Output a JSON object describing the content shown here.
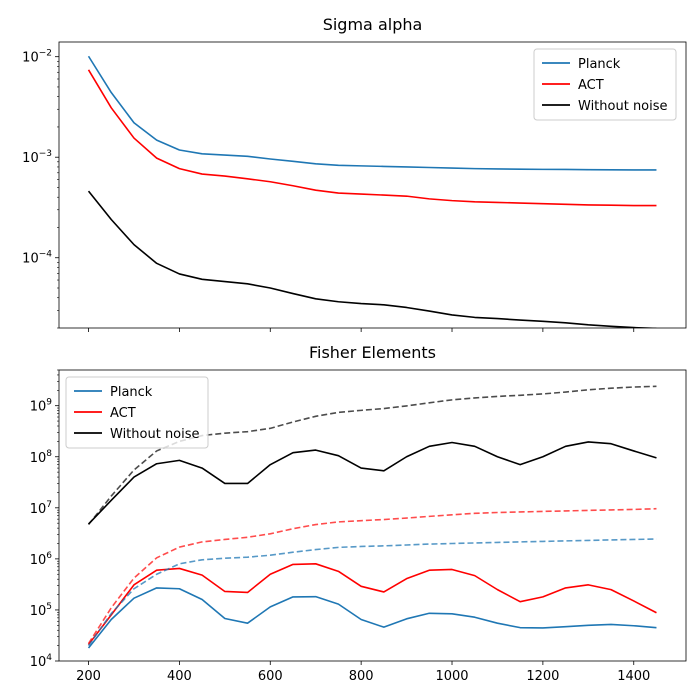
{
  "chart_data": [
    {
      "type": "line",
      "title": "Sigma alpha",
      "yscale": "log",
      "ylim": [
        2e-05,
        0.014
      ],
      "xlim": [
        135,
        1515
      ],
      "xticks": [
        200,
        400,
        600,
        800,
        1000,
        1200,
        1400
      ],
      "x_ticklabels_visible": false,
      "yticks": [
        {
          "value": 0.0001,
          "mant": "10",
          "exp": "−4"
        },
        {
          "value": 0.001,
          "mant": "10",
          "exp": "−3"
        },
        {
          "value": 0.01,
          "mant": "10",
          "exp": "−2"
        }
      ],
      "legend": {
        "location": "upper right"
      },
      "x": [
        200,
        250,
        300,
        350,
        400,
        450,
        500,
        550,
        600,
        650,
        700,
        750,
        800,
        850,
        900,
        950,
        1000,
        1050,
        1100,
        1150,
        1200,
        1250,
        1300,
        1350,
        1400,
        1450
      ],
      "series": [
        {
          "name": "Planck",
          "color": "#1f77b4",
          "style": "solid",
          "values": [
            0.0101,
            0.0044,
            0.0022,
            0.00148,
            0.00118,
            0.00108,
            0.00105,
            0.00102,
            0.00096,
            0.00091,
            0.00086,
            0.00083,
            0.00082,
            0.00081,
            0.0008,
            0.00079,
            0.00078,
            0.00077,
            0.000765,
            0.00076,
            0.000757,
            0.000755,
            0.000752,
            0.00075,
            0.000748,
            0.000747
          ]
        },
        {
          "name": "ACT",
          "color": "#ff0000",
          "style": "solid",
          "values": [
            0.0074,
            0.0031,
            0.00155,
            0.00098,
            0.00077,
            0.00068,
            0.00065,
            0.00061,
            0.00057,
            0.00052,
            0.00047,
            0.00044,
            0.00043,
            0.00042,
            0.00041,
            0.000385,
            0.00037,
            0.00036,
            0.000355,
            0.00035,
            0.000345,
            0.00034,
            0.000335,
            0.000333,
            0.00033,
            0.00033
          ]
        },
        {
          "name": "Without noise",
          "color": "#000000",
          "style": "solid",
          "values": [
            0.00046,
            0.00024,
            0.000135,
            8.8e-05,
            6.9e-05,
            6.1e-05,
            5.8e-05,
            5.5e-05,
            5e-05,
            4.4e-05,
            3.9e-05,
            3.65e-05,
            3.5e-05,
            3.4e-05,
            3.2e-05,
            2.95e-05,
            2.7e-05,
            2.55e-05,
            2.48e-05,
            2.4e-05,
            2.33e-05,
            2.25e-05,
            2.15e-05,
            2.08e-05,
            2.02e-05,
            1.98e-05
          ]
        }
      ]
    },
    {
      "type": "line",
      "title": "Fisher Elements",
      "yscale": "log",
      "ylim": [
        10000,
        5000000000
      ],
      "xlim": [
        135,
        1515
      ],
      "xticks": [
        200,
        400,
        600,
        800,
        1000,
        1200,
        1400
      ],
      "yticks": [
        {
          "value": 10000,
          "mant": "10",
          "exp": "4"
        },
        {
          "value": 100000,
          "mant": "10",
          "exp": "5"
        },
        {
          "value": 1000000,
          "mant": "10",
          "exp": "6"
        },
        {
          "value": 10000000,
          "mant": "10",
          "exp": "7"
        },
        {
          "value": 100000000,
          "mant": "10",
          "exp": "8"
        },
        {
          "value": 1000000000,
          "mant": "10",
          "exp": "9"
        }
      ],
      "legend": {
        "location": "upper left"
      },
      "x": [
        200,
        250,
        300,
        350,
        400,
        450,
        500,
        550,
        600,
        650,
        700,
        750,
        800,
        850,
        900,
        950,
        1000,
        1050,
        1100,
        1150,
        1200,
        1250,
        1300,
        1350,
        1400,
        1450
      ],
      "series": [
        {
          "name": "Planck",
          "color": "#1f77b4",
          "style": "solid",
          "values": [
            18000,
            65000,
            170000,
            270000,
            260000,
            160000,
            68000,
            55000,
            115000,
            180000,
            182000,
            130000,
            65000,
            46000,
            67000,
            86000,
            84000,
            72000,
            55000,
            45000,
            44500,
            47000,
            50000,
            52000,
            49000,
            45000
          ]
        },
        {
          "name": "ACT",
          "color": "#ff0000",
          "style": "solid",
          "values": [
            21000,
            80000,
            310000,
            600000,
            650000,
            480000,
            230000,
            220000,
            500000,
            780000,
            800000,
            570000,
            290000,
            225000,
            410000,
            600000,
            620000,
            470000,
            250000,
            145000,
            180000,
            270000,
            310000,
            250000,
            150000,
            88000
          ]
        },
        {
          "name": "Without noise",
          "color": "#000000",
          "style": "solid",
          "values": [
            4800000,
            14000000,
            40000000,
            73000000,
            85000000,
            60000000,
            30000000,
            30000000,
            70000000,
            120000000,
            135000000,
            105000000,
            60000000,
            53000000,
            100000000,
            160000000,
            190000000,
            160000000,
            100000000,
            70000000,
            100000000,
            160000000,
            195000000,
            180000000,
            130000000,
            95000000
          ]
        },
        {
          "name": "",
          "color": "#1f77b4",
          "style": "dashed",
          "opacity": 0.75,
          "values": [
            20000,
            85000,
            260000,
            500000,
            800000,
            960000,
            1030000,
            1080000,
            1180000,
            1350000,
            1520000,
            1680000,
            1750000,
            1800000,
            1870000,
            1950000,
            2000000,
            2050000,
            2100000,
            2150000,
            2200000,
            2250000,
            2300000,
            2350000,
            2400000,
            2450000
          ]
        },
        {
          "name": "",
          "color": "#ff0000",
          "style": "dashed",
          "opacity": 0.7,
          "values": [
            22000,
            110000,
            420000,
            1050000,
            1700000,
            2150000,
            2400000,
            2650000,
            3100000,
            3900000,
            4700000,
            5300000,
            5600000,
            5900000,
            6300000,
            6800000,
            7300000,
            7800000,
            8100000,
            8300000,
            8500000,
            8700000,
            8900000,
            9100000,
            9300000,
            9600000
          ]
        },
        {
          "name": "",
          "color": "#000000",
          "style": "dashed",
          "opacity": 0.7,
          "values": [
            4700000,
            17000000,
            55000000,
            130000000,
            200000000,
            260000000,
            290000000,
            310000000,
            360000000,
            480000000,
            620000000,
            740000000,
            810000000,
            880000000,
            990000000,
            1140000000,
            1300000000,
            1420000000,
            1520000000,
            1600000000,
            1700000000,
            1850000000,
            2050000000,
            2200000000,
            2320000000,
            2400000000
          ]
        }
      ]
    }
  ]
}
